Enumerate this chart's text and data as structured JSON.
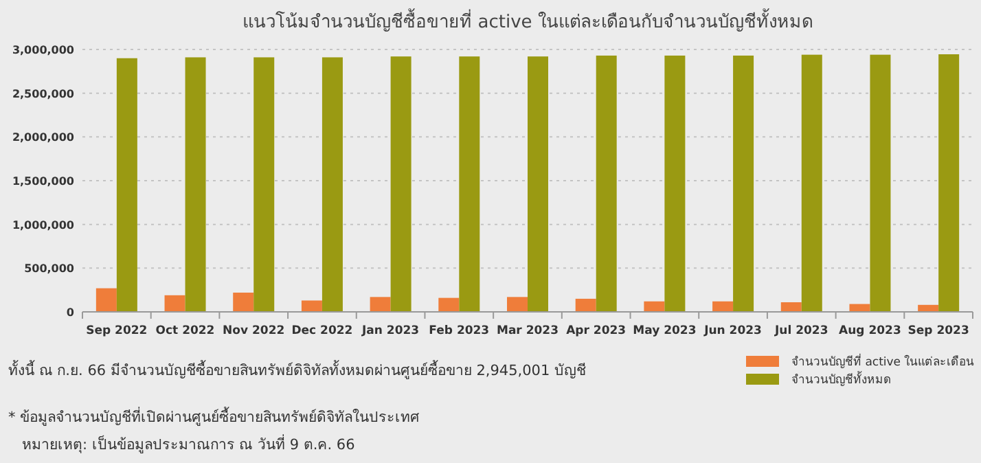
{
  "chart_data": {
    "type": "bar",
    "title": "แนวโน้มจำนวนบัญชีซื้อขายที่ active ในแต่ละเดือนกับจำนวนบัญชีทั้งหมด",
    "categories": [
      "Sep 2022",
      "Oct 2022",
      "Nov 2022",
      "Dec 2022",
      "Jan 2023",
      "Feb 2023",
      "Mar 2023",
      "Apr 2023",
      "May 2023",
      "Jun 2023",
      "Jul 2023",
      "Aug 2023",
      "Sep 2023"
    ],
    "series": [
      {
        "name": "จำนวนบัญชีที่ active ในแต่ละเดือน",
        "color": "#ef7d3a",
        "values": [
          270000,
          190000,
          220000,
          130000,
          170000,
          160000,
          170000,
          150000,
          120000,
          120000,
          110000,
          90000,
          80000
        ]
      },
      {
        "name": "จำนวนบัญชีทั้งหมด",
        "color": "#9a9a12",
        "values": [
          2900000,
          2910000,
          2910000,
          2910000,
          2920000,
          2920000,
          2920000,
          2930000,
          2930000,
          2930000,
          2940000,
          2940000,
          2945001
        ]
      }
    ],
    "ylim": [
      0,
      3000000
    ],
    "yticks": [
      {
        "value": 0,
        "label": "0"
      },
      {
        "value": 500000,
        "label": "500,000"
      },
      {
        "value": 1000000,
        "label": "1,000,000"
      },
      {
        "value": 1500000,
        "label": "1,500,000"
      },
      {
        "value": 2000000,
        "label": "2,000,000"
      },
      {
        "value": 2500000,
        "label": "2,500,000"
      },
      {
        "value": 3000000,
        "label": "3,000,000"
      }
    ],
    "grid": "y",
    "legend": "bottom right",
    "annotations": [
      "ทั้งนี้ ณ ก.ย. 66 มีจำนวนบัญชีซื้อขายสินทรัพย์ดิจิทัลทั้งหมดผ่านศูนย์ซื้อขาย 2,945,001 บัญชี",
      "* ข้อมูลจำนวนบัญชีที่เปิดผ่านศูนย์ซื้อขายสินทรัพย์ดิจิทัลในประเทศ",
      "หมายเหตุ: เป็นข้อมูลประมาณการ ณ วันที่ 9 ต.ค. 66"
    ]
  }
}
